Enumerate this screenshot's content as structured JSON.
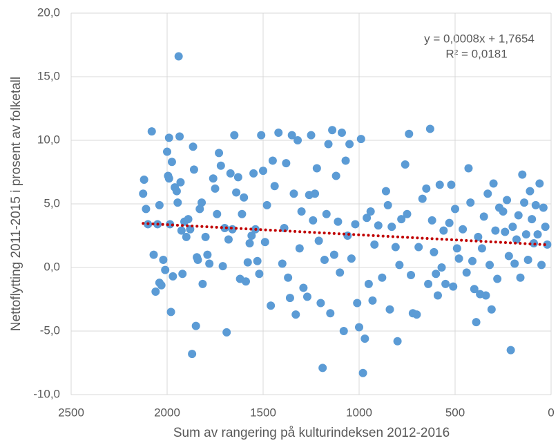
{
  "chart_data": {
    "type": "scatter",
    "x_label": "Sum av rangering på kulturindeksen 2012-2016",
    "y_label": "Nettoflytting 2011-2015 i prosent av folketall",
    "xlim": [
      2500,
      0
    ],
    "xticks": [
      2500,
      2000,
      1500,
      1000,
      500,
      0
    ],
    "ylim": [
      -10,
      20
    ],
    "yticks": [
      {
        "value": -10,
        "label": "-10,0"
      },
      {
        "value": -5,
        "label": "-5,0"
      },
      {
        "value": 0,
        "label": "0,0"
      },
      {
        "value": 5,
        "label": "5,0"
      },
      {
        "value": 10,
        "label": "10,0"
      },
      {
        "value": 15,
        "label": "15,0"
      },
      {
        "value": 20,
        "label": "20,0"
      }
    ],
    "grid": true,
    "color": "#5b9bd5",
    "x": [
      2120,
      2125,
      2110,
      2100,
      2080,
      2070,
      2060,
      2050,
      2040,
      2040,
      2030,
      2020,
      2010,
      2000,
      1995,
      1990,
      1990,
      1985,
      1980,
      1975,
      1970,
      1960,
      1950,
      1945,
      1940,
      1935,
      1930,
      1925,
      1920,
      1910,
      1900,
      1890,
      1880,
      1870,
      1865,
      1860,
      1850,
      1845,
      1840,
      1830,
      1820,
      1815,
      1800,
      1790,
      1780,
      1760,
      1750,
      1740,
      1730,
      1720,
      1710,
      1700,
      1690,
      1680,
      1670,
      1660,
      1650,
      1640,
      1630,
      1620,
      1610,
      1600,
      1590,
      1580,
      1570,
      1560,
      1550,
      1540,
      1530,
      1520,
      1510,
      1500,
      1490,
      1480,
      1460,
      1450,
      1440,
      1420,
      1400,
      1390,
      1380,
      1370,
      1360,
      1350,
      1340,
      1330,
      1320,
      1310,
      1300,
      1290,
      1270,
      1260,
      1250,
      1240,
      1230,
      1220,
      1210,
      1200,
      1190,
      1180,
      1170,
      1160,
      1150,
      1140,
      1130,
      1120,
      1110,
      1100,
      1090,
      1080,
      1070,
      1060,
      1050,
      1040,
      1020,
      1010,
      1000,
      990,
      980,
      970,
      960,
      950,
      940,
      930,
      920,
      900,
      880,
      860,
      850,
      840,
      830,
      810,
      800,
      790,
      780,
      760,
      750,
      740,
      730,
      720,
      700,
      690,
      670,
      650,
      640,
      630,
      620,
      610,
      600,
      590,
      580,
      570,
      560,
      550,
      530,
      520,
      510,
      500,
      490,
      480,
      460,
      440,
      430,
      420,
      410,
      400,
      390,
      380,
      370,
      360,
      350,
      340,
      330,
      320,
      310,
      300,
      290,
      280,
      270,
      250,
      240,
      230,
      220,
      210,
      200,
      190,
      180,
      170,
      160,
      150,
      140,
      130,
      120,
      110,
      100,
      90,
      80,
      70,
      60,
      50,
      40,
      30,
      20
    ],
    "y": [
      6.9,
      5.8,
      4.6,
      3.4,
      10.7,
      1.0,
      -1.9,
      3.4,
      4.9,
      -1.2,
      -1.4,
      0.6,
      -0.2,
      9.1,
      7.2,
      10.2,
      7.0,
      3.4,
      -3.5,
      8.3,
      -0.7,
      6.3,
      6.0,
      5.1,
      16.6,
      10.3,
      6.7,
      2.9,
      -0.5,
      3.6,
      2.4,
      3.8,
      3.0,
      -6.8,
      9.5,
      7.7,
      -4.6,
      0.8,
      0.6,
      4.6,
      5.1,
      -1.3,
      2.4,
      1.0,
      0.3,
      7.0,
      6.2,
      4.2,
      9.0,
      8.0,
      0.1,
      3.1,
      -5.1,
      2.2,
      7.4,
      3.0,
      10.4,
      5.9,
      7.1,
      -0.9,
      4.2,
      5.5,
      -1.1,
      0.4,
      1.9,
      2.5,
      7.4,
      3.0,
      0.5,
      -0.5,
      10.4,
      7.6,
      2.0,
      4.9,
      -3.0,
      8.4,
      6.4,
      10.6,
      0.3,
      3.1,
      8.2,
      -0.8,
      -2.4,
      10.4,
      5.8,
      -3.7,
      10.0,
      1.5,
      4.4,
      -1.6,
      -2.3,
      5.7,
      10.4,
      3.7,
      5.8,
      7.8,
      2.1,
      -2.8,
      -7.9,
      0.6,
      4.2,
      9.7,
      -3.6,
      10.8,
      1.0,
      7.2,
      3.6,
      -0.4,
      10.6,
      -5.0,
      8.4,
      2.5,
      9.7,
      0.7,
      3.4,
      -2.8,
      -4.7,
      10.1,
      -8.3,
      -5.6,
      3.9,
      -1.3,
      4.4,
      -2.6,
      1.8,
      3.3,
      -0.8,
      6.0,
      4.9,
      -3.3,
      3.2,
      1.6,
      -5.8,
      0.2,
      3.8,
      8.1,
      4.2,
      10.5,
      -0.6,
      -3.6,
      -3.7,
      1.6,
      5.4,
      6.2,
      -1.3,
      10.9,
      3.7,
      1.2,
      -0.5,
      -2.2,
      6.5,
      0.0,
      2.9,
      -1.3,
      3.5,
      6.5,
      -1.5,
      4.6,
      1.5,
      0.7,
      3.0,
      -0.4,
      7.8,
      5.1,
      0.5,
      -1.7,
      -4.3,
      2.4,
      -2.1,
      1.5,
      4.0,
      -2.2,
      5.8,
      0.2,
      -3.3,
      6.6,
      2.9,
      -0.9,
      4.7,
      4.4,
      2.8,
      5.3,
      0.9,
      -6.5,
      3.2,
      0.3,
      2.2,
      4.1,
      -0.8,
      7.3,
      5.1,
      2.6,
      0.6,
      6.0,
      3.8,
      1.9,
      4.9,
      2.6,
      6.6,
      0.2,
      4.7,
      3.2,
      1.8
    ],
    "trendline": {
      "equation": "y = 0,0008x + 1,7654",
      "r_squared_label": "R² = 0,0181",
      "slope": 0.0008,
      "intercept": 1.7654,
      "color": "#c00000"
    }
  }
}
